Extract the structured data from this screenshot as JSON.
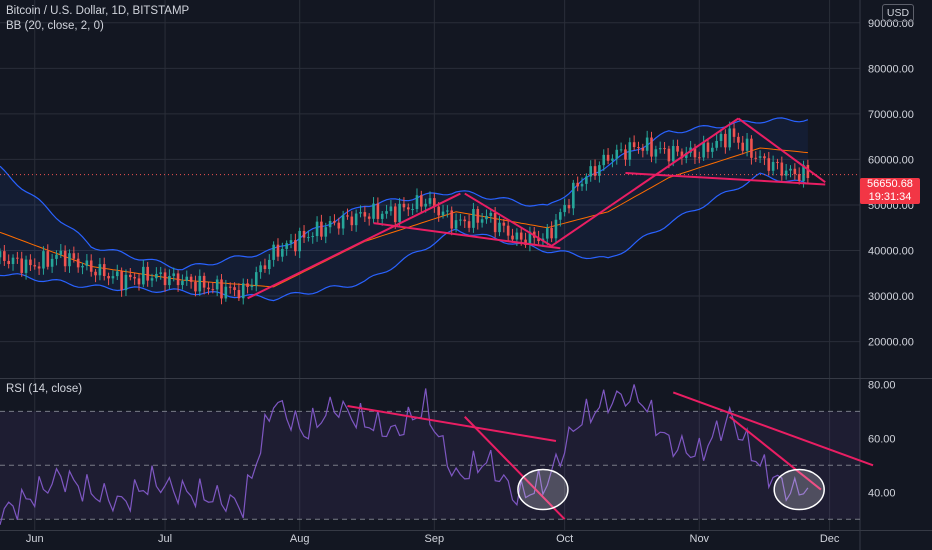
{
  "header": {
    "title": "Bitcoin / U.S. Dollar, 1D, BITSTAMP",
    "indicator": "BB (20, close, 2, 0)",
    "currency": "USD"
  },
  "rsi_panel": {
    "label": "RSI (14, close)"
  },
  "price_box": {
    "last_price": "56650.68",
    "countdown": "19:31:34"
  },
  "colors": {
    "background": "#131722",
    "grid": "#2a2e39",
    "up": "#26a69a",
    "down": "#ef5350",
    "bb_band": "#2962ff",
    "bb_basis": "#ff6d00",
    "rsi_line": "#7e57c2",
    "trendline": "#e91e63",
    "price_box": "#f23645"
  },
  "chart_data": [
    {
      "type": "candlestick",
      "title": "Bitcoin / U.S. Dollar, 1D, BITSTAMP",
      "x_ticks": [
        "Jun",
        "Jul",
        "Aug",
        "Sep",
        "Oct",
        "Nov",
        "Dec"
      ],
      "y_ticks": [
        20000,
        30000,
        40000,
        50000,
        60000,
        70000,
        80000,
        90000
      ],
      "ylim": [
        12000,
        95000
      ],
      "x_range": [
        "2021-05-24",
        "2021-12-08"
      ],
      "series_close_weekly": [
        {
          "x": "2021-05-24",
          "y": 38500
        },
        {
          "x": "2021-05-31",
          "y": 36500
        },
        {
          "x": "2021-06-07",
          "y": 39000
        },
        {
          "x": "2021-06-14",
          "y": 36000
        },
        {
          "x": "2021-06-21",
          "y": 33500
        },
        {
          "x": "2021-06-28",
          "y": 34500
        },
        {
          "x": "2021-07-05",
          "y": 33500
        },
        {
          "x": "2021-07-12",
          "y": 31800
        },
        {
          "x": "2021-07-19",
          "y": 31000
        },
        {
          "x": "2021-07-26",
          "y": 39500
        },
        {
          "x": "2021-08-02",
          "y": 43000
        },
        {
          "x": "2021-08-09",
          "y": 46000
        },
        {
          "x": "2021-08-16",
          "y": 48000
        },
        {
          "x": "2021-08-23",
          "y": 48500
        },
        {
          "x": "2021-08-30",
          "y": 51000
        },
        {
          "x": "2021-09-06",
          "y": 46000
        },
        {
          "x": "2021-09-13",
          "y": 47500
        },
        {
          "x": "2021-09-20",
          "y": 42500
        },
        {
          "x": "2021-09-27",
          "y": 43000
        },
        {
          "x": "2021-10-04",
          "y": 54500
        },
        {
          "x": "2021-10-11",
          "y": 60500
        },
        {
          "x": "2021-10-18",
          "y": 63000
        },
        {
          "x": "2021-10-25",
          "y": 61500
        },
        {
          "x": "2021-11-01",
          "y": 61300
        },
        {
          "x": "2021-11-08",
          "y": 65500
        },
        {
          "x": "2021-11-15",
          "y": 60000
        },
        {
          "x": "2021-11-22",
          "y": 57000
        },
        {
          "x": "2021-11-26",
          "y": 56650.68
        }
      ],
      "series_bb_upper": [
        {
          "x": "2021-05-24",
          "y": 58000
        },
        {
          "x": "2021-06-14",
          "y": 41000
        },
        {
          "x": "2021-07-05",
          "y": 36000
        },
        {
          "x": "2021-07-26",
          "y": 40000
        },
        {
          "x": "2021-08-16",
          "y": 50000
        },
        {
          "x": "2021-09-06",
          "y": 53000
        },
        {
          "x": "2021-09-27",
          "y": 49500
        },
        {
          "x": "2021-10-11",
          "y": 59000
        },
        {
          "x": "2021-10-25",
          "y": 66000
        },
        {
          "x": "2021-11-15",
          "y": 68500
        },
        {
          "x": "2021-11-26",
          "y": 68800
        }
      ],
      "series_bb_lower": [
        {
          "x": "2021-05-24",
          "y": 35000
        },
        {
          "x": "2021-06-14",
          "y": 32000
        },
        {
          "x": "2021-07-05",
          "y": 31000
        },
        {
          "x": "2021-07-26",
          "y": 29500
        },
        {
          "x": "2021-08-16",
          "y": 33000
        },
        {
          "x": "2021-09-06",
          "y": 44500
        },
        {
          "x": "2021-09-27",
          "y": 40000
        },
        {
          "x": "2021-10-11",
          "y": 38000
        },
        {
          "x": "2021-10-25",
          "y": 46000
        },
        {
          "x": "2021-11-15",
          "y": 56500
        },
        {
          "x": "2021-11-26",
          "y": 54500
        }
      ],
      "series_bb_basis": [
        {
          "x": "2021-05-24",
          "y": 44000
        },
        {
          "x": "2021-06-14",
          "y": 36500
        },
        {
          "x": "2021-07-05",
          "y": 33500
        },
        {
          "x": "2021-07-26",
          "y": 32000
        },
        {
          "x": "2021-08-16",
          "y": 42000
        },
        {
          "x": "2021-09-06",
          "y": 48500
        },
        {
          "x": "2021-09-27",
          "y": 45000
        },
        {
          "x": "2021-10-11",
          "y": 48500
        },
        {
          "x": "2021-10-25",
          "y": 56000
        },
        {
          "x": "2021-11-15",
          "y": 62500
        },
        {
          "x": "2021-11-26",
          "y": 61500
        }
      ],
      "trendlines": [
        {
          "from": {
            "x": "2021-07-20",
            "y": 29500
          },
          "to": {
            "x": "2021-09-07",
            "y": 52500
          }
        },
        {
          "from": {
            "x": "2021-08-18",
            "y": 46000
          },
          "to": {
            "x": "2021-09-30",
            "y": 40500
          }
        },
        {
          "from": {
            "x": "2021-09-08",
            "y": 52500
          },
          "to": {
            "x": "2021-09-28",
            "y": 41000
          }
        },
        {
          "from": {
            "x": "2021-09-28",
            "y": 41000
          },
          "to": {
            "x": "2021-11-10",
            "y": 69000
          }
        },
        {
          "from": {
            "x": "2021-10-15",
            "y": 57000
          },
          "to": {
            "x": "2021-11-30",
            "y": 54500
          }
        },
        {
          "from": {
            "x": "2021-11-10",
            "y": 69000
          },
          "to": {
            "x": "2021-11-30",
            "y": 55000
          }
        }
      ]
    },
    {
      "type": "line",
      "title": "RSI (14, close)",
      "y_ticks": [
        40,
        60,
        80
      ],
      "ylim": [
        26,
        82
      ],
      "bands": [
        30,
        50,
        70
      ],
      "series_rsi": [
        {
          "x": "2021-05-24",
          "y": 32
        },
        {
          "x": "2021-05-31",
          "y": 38
        },
        {
          "x": "2021-06-07",
          "y": 46
        },
        {
          "x": "2021-06-14",
          "y": 40
        },
        {
          "x": "2021-06-21",
          "y": 36
        },
        {
          "x": "2021-06-28",
          "y": 44
        },
        {
          "x": "2021-07-05",
          "y": 40
        },
        {
          "x": "2021-07-12",
          "y": 38
        },
        {
          "x": "2021-07-19",
          "y": 35
        },
        {
          "x": "2021-07-26",
          "y": 74
        },
        {
          "x": "2021-08-02",
          "y": 62
        },
        {
          "x": "2021-08-09",
          "y": 72
        },
        {
          "x": "2021-08-16",
          "y": 66
        },
        {
          "x": "2021-08-23",
          "y": 62
        },
        {
          "x": "2021-08-30",
          "y": 72
        },
        {
          "x": "2021-09-06",
          "y": 45
        },
        {
          "x": "2021-09-13",
          "y": 52
        },
        {
          "x": "2021-09-20",
          "y": 38
        },
        {
          "x": "2021-09-27",
          "y": 44
        },
        {
          "x": "2021-10-04",
          "y": 66
        },
        {
          "x": "2021-10-11",
          "y": 74
        },
        {
          "x": "2021-10-18",
          "y": 76
        },
        {
          "x": "2021-10-25",
          "y": 58
        },
        {
          "x": "2021-11-01",
          "y": 54
        },
        {
          "x": "2021-11-08",
          "y": 68
        },
        {
          "x": "2021-11-15",
          "y": 50
        },
        {
          "x": "2021-11-22",
          "y": 40
        },
        {
          "x": "2021-11-26",
          "y": 42
        }
      ],
      "trendlines": [
        {
          "from": {
            "x": "2021-08-12",
            "y": 72
          },
          "to": {
            "x": "2021-09-29",
            "y": 59
          }
        },
        {
          "from": {
            "x": "2021-09-08",
            "y": 68
          },
          "to": {
            "x": "2021-10-01",
            "y": 30
          }
        },
        {
          "from": {
            "x": "2021-10-26",
            "y": 77
          },
          "to": {
            "x": "2021-12-11",
            "y": 50
          }
        },
        {
          "from": {
            "x": "2021-11-08",
            "y": 68
          },
          "to": {
            "x": "2021-11-29",
            "y": 41
          }
        }
      ]
    }
  ]
}
